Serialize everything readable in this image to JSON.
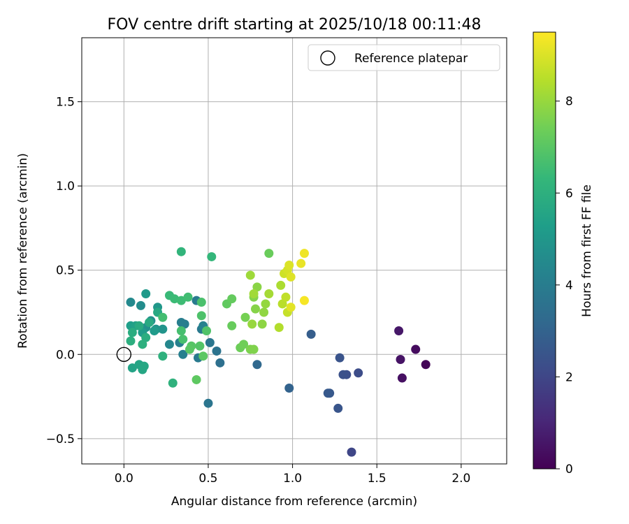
{
  "chart_data": {
    "type": "scatter",
    "title": "FOV centre drift starting at 2025/10/18 00:11:48",
    "xlabel": "Angular distance from reference (arcmin)",
    "ylabel": "Rotation from reference (arcmin)",
    "xlim": [
      -0.25,
      2.27
    ],
    "ylim": [
      -0.65,
      1.88
    ],
    "xticks": [
      0.0,
      0.5,
      1.0,
      1.5,
      2.0
    ],
    "xtick_labels": [
      "0.0",
      "0.5",
      "1.0",
      "1.5",
      "2.0"
    ],
    "yticks": [
      -0.5,
      0.0,
      0.5,
      1.0,
      1.5
    ],
    "ytick_labels": [
      "−0.5",
      "0.0",
      "0.5",
      "1.0",
      "1.5"
    ],
    "grid": true,
    "legend": {
      "position": "top-right",
      "entries": [
        {
          "label": "Reference platepar",
          "marker": "open-circle"
        }
      ]
    },
    "reference_point": {
      "x": 0.0,
      "y": 0.0
    },
    "colorbar": {
      "label": "Hours from first FF file",
      "colormap": "viridis",
      "range": [
        0,
        9.5
      ],
      "ticks": [
        0,
        2,
        4,
        6,
        8
      ],
      "tick_labels": [
        "0",
        "2",
        "4",
        "6",
        "8"
      ]
    },
    "colormap_stops": [
      "#440154",
      "#482878",
      "#3e4a89",
      "#31688e",
      "#26828e",
      "#1f9e89",
      "#35b779",
      "#6ece58",
      "#b5de2b",
      "#fde725"
    ],
    "points": [
      {
        "x": 1.79,
        "y": -0.06,
        "h": 0.1
      },
      {
        "x": 1.73,
        "y": 0.03,
        "h": 0.3
      },
      {
        "x": 1.65,
        "y": -0.14,
        "h": 0.4
      },
      {
        "x": 1.64,
        "y": -0.03,
        "h": 0.5
      },
      {
        "x": 1.63,
        "y": 0.14,
        "h": 0.6
      },
      {
        "x": 1.35,
        "y": -0.58,
        "h": 2.0
      },
      {
        "x": 1.39,
        "y": -0.11,
        "h": 2.2
      },
      {
        "x": 1.32,
        "y": -0.12,
        "h": 2.3
      },
      {
        "x": 1.3,
        "y": -0.12,
        "h": 2.35
      },
      {
        "x": 1.28,
        "y": -0.02,
        "h": 2.45
      },
      {
        "x": 1.27,
        "y": -0.32,
        "h": 2.5
      },
      {
        "x": 1.22,
        "y": -0.23,
        "h": 2.6
      },
      {
        "x": 1.21,
        "y": -0.23,
        "h": 2.65
      },
      {
        "x": 1.11,
        "y": 0.12,
        "h": 2.8
      },
      {
        "x": 0.98,
        "y": -0.2,
        "h": 3.0
      },
      {
        "x": 0.79,
        "y": -0.06,
        "h": 3.2
      },
      {
        "x": 0.57,
        "y": -0.05,
        "h": 3.5
      },
      {
        "x": 0.55,
        "y": 0.02,
        "h": 3.6
      },
      {
        "x": 0.5,
        "y": -0.29,
        "h": 3.7
      },
      {
        "x": 0.51,
        "y": 0.07,
        "h": 3.75
      },
      {
        "x": 0.46,
        "y": 0.15,
        "h": 3.85
      },
      {
        "x": 0.44,
        "y": -0.02,
        "h": 3.9
      },
      {
        "x": 0.43,
        "y": 0.32,
        "h": 3.95
      },
      {
        "x": 0.36,
        "y": 0.18,
        "h": 4.0
      },
      {
        "x": 0.34,
        "y": 0.19,
        "h": 4.05
      },
      {
        "x": 0.35,
        "y": 0.0,
        "h": 4.1
      },
      {
        "x": 0.33,
        "y": 0.07,
        "h": 4.15
      },
      {
        "x": 0.47,
        "y": 0.17,
        "h": 4.2
      },
      {
        "x": 0.27,
        "y": 0.06,
        "h": 4.4
      },
      {
        "x": 0.04,
        "y": 0.31,
        "h": 4.5
      },
      {
        "x": 0.1,
        "y": 0.29,
        "h": 4.6
      },
      {
        "x": 0.16,
        "y": 0.2,
        "h": 4.7
      },
      {
        "x": 0.13,
        "y": 0.16,
        "h": 4.75
      },
      {
        "x": 0.19,
        "y": 0.15,
        "h": 4.8
      },
      {
        "x": 0.23,
        "y": 0.15,
        "h": 4.9
      },
      {
        "x": 0.2,
        "y": 0.28,
        "h": 5.0
      },
      {
        "x": 0.13,
        "y": 0.36,
        "h": 5.1
      },
      {
        "x": 0.18,
        "y": 0.14,
        "h": 5.15
      },
      {
        "x": 0.11,
        "y": 0.13,
        "h": 5.2
      },
      {
        "x": 0.04,
        "y": 0.17,
        "h": 5.3
      },
      {
        "x": 0.07,
        "y": 0.17,
        "h": 5.4
      },
      {
        "x": 0.05,
        "y": -0.08,
        "h": 5.5
      },
      {
        "x": 0.09,
        "y": -0.06,
        "h": 5.55
      },
      {
        "x": 0.11,
        "y": -0.09,
        "h": 5.6
      },
      {
        "x": 0.12,
        "y": -0.07,
        "h": 5.65
      },
      {
        "x": 0.2,
        "y": 0.25,
        "h": 5.7
      },
      {
        "x": 0.15,
        "y": 0.19,
        "h": 5.75
      },
      {
        "x": 0.09,
        "y": 0.17,
        "h": 5.8
      },
      {
        "x": 0.05,
        "y": 0.13,
        "h": 5.85
      },
      {
        "x": 0.13,
        "y": 0.1,
        "h": 5.9
      },
      {
        "x": 0.04,
        "y": 0.08,
        "h": 5.95
      },
      {
        "x": 0.11,
        "y": 0.06,
        "h": 6.0
      },
      {
        "x": 0.23,
        "y": -0.01,
        "h": 6.05
      },
      {
        "x": 0.29,
        "y": -0.17,
        "h": 6.1
      },
      {
        "x": 0.34,
        "y": 0.61,
        "h": 6.2
      },
      {
        "x": 0.52,
        "y": 0.58,
        "h": 6.3
      },
      {
        "x": 0.27,
        "y": 0.35,
        "h": 6.4
      },
      {
        "x": 0.3,
        "y": 0.33,
        "h": 6.45
      },
      {
        "x": 0.34,
        "y": 0.32,
        "h": 6.5
      },
      {
        "x": 0.38,
        "y": 0.34,
        "h": 6.55
      },
      {
        "x": 0.23,
        "y": 0.22,
        "h": 6.6
      },
      {
        "x": 0.34,
        "y": 0.14,
        "h": 6.65
      },
      {
        "x": 0.35,
        "y": 0.09,
        "h": 6.7
      },
      {
        "x": 0.46,
        "y": 0.31,
        "h": 6.75
      },
      {
        "x": 0.46,
        "y": 0.23,
        "h": 6.8
      },
      {
        "x": 0.49,
        "y": 0.14,
        "h": 6.85
      },
      {
        "x": 0.45,
        "y": 0.05,
        "h": 6.9
      },
      {
        "x": 0.4,
        "y": 0.05,
        "h": 6.95
      },
      {
        "x": 0.39,
        "y": 0.03,
        "h": 7.0
      },
      {
        "x": 0.47,
        "y": -0.01,
        "h": 7.05
      },
      {
        "x": 0.43,
        "y": -0.15,
        "h": 7.1
      },
      {
        "x": 0.61,
        "y": 0.3,
        "h": 7.15
      },
      {
        "x": 0.64,
        "y": 0.33,
        "h": 7.2
      },
      {
        "x": 0.64,
        "y": 0.17,
        "h": 7.25
      },
      {
        "x": 0.86,
        "y": 0.6,
        "h": 7.3
      },
      {
        "x": 0.69,
        "y": 0.04,
        "h": 7.35
      },
      {
        "x": 0.71,
        "y": 0.06,
        "h": 7.4
      },
      {
        "x": 0.72,
        "y": 0.22,
        "h": 7.5
      },
      {
        "x": 0.75,
        "y": 0.03,
        "h": 7.6
      },
      {
        "x": 0.77,
        "y": 0.03,
        "h": 7.65
      },
      {
        "x": 0.77,
        "y": 0.34,
        "h": 7.7
      },
      {
        "x": 0.78,
        "y": 0.27,
        "h": 7.75
      },
      {
        "x": 0.79,
        "y": 0.4,
        "h": 7.8
      },
      {
        "x": 0.82,
        "y": 0.18,
        "h": 7.85
      },
      {
        "x": 0.83,
        "y": 0.25,
        "h": 7.9
      },
      {
        "x": 0.84,
        "y": 0.3,
        "h": 7.95
      },
      {
        "x": 0.76,
        "y": 0.18,
        "h": 8.0
      },
      {
        "x": 0.75,
        "y": 0.47,
        "h": 8.1
      },
      {
        "x": 0.77,
        "y": 0.36,
        "h": 8.15
      },
      {
        "x": 0.86,
        "y": 0.36,
        "h": 8.2
      },
      {
        "x": 0.93,
        "y": 0.41,
        "h": 8.3
      },
      {
        "x": 0.92,
        "y": 0.16,
        "h": 8.4
      },
      {
        "x": 0.94,
        "y": 0.3,
        "h": 8.5
      },
      {
        "x": 0.96,
        "y": 0.34,
        "h": 8.6
      },
      {
        "x": 0.97,
        "y": 0.25,
        "h": 8.7
      },
      {
        "x": 0.95,
        "y": 0.48,
        "h": 8.8
      },
      {
        "x": 0.97,
        "y": 0.5,
        "h": 8.9
      },
      {
        "x": 0.98,
        "y": 0.53,
        "h": 9.0
      },
      {
        "x": 0.99,
        "y": 0.46,
        "h": 9.05
      },
      {
        "x": 0.99,
        "y": 0.28,
        "h": 9.1
      },
      {
        "x": 1.05,
        "y": 0.54,
        "h": 9.2
      },
      {
        "x": 1.07,
        "y": 0.6,
        "h": 9.3
      },
      {
        "x": 1.07,
        "y": 0.32,
        "h": 9.4
      }
    ]
  }
}
